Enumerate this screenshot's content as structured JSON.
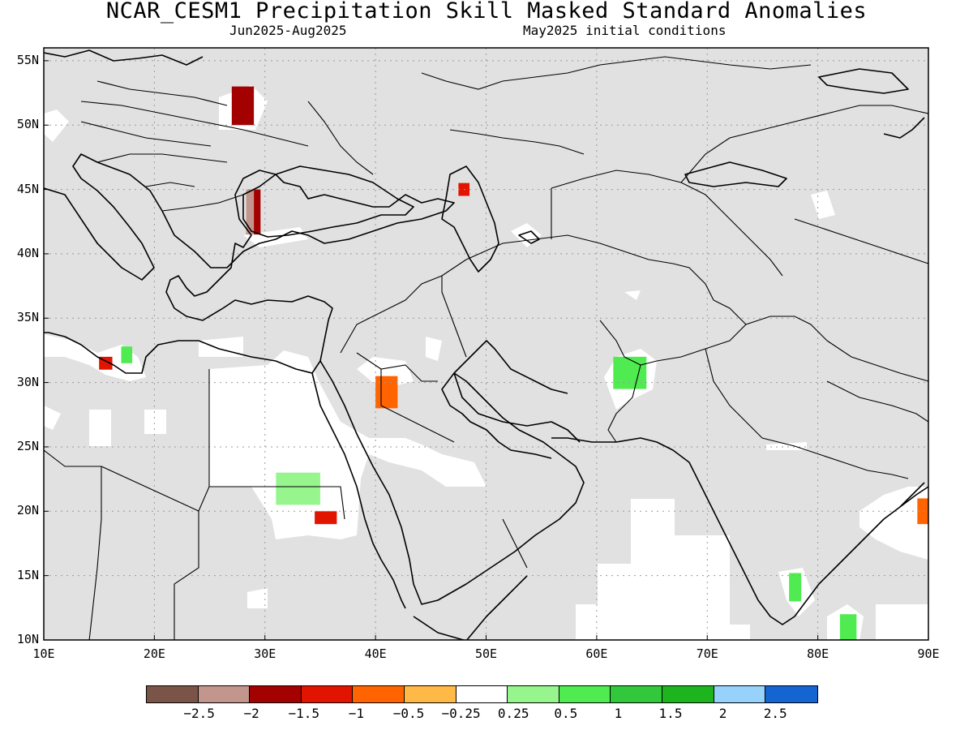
{
  "title": "NCAR_CESM1 Precipitation Skill Masked Standard Anomalies",
  "subtitle_left": "Jun2025-Aug2025",
  "subtitle_right": "May2025 initial conditions",
  "map": {
    "lon_range": [
      10,
      90
    ],
    "lat_range": [
      10,
      56
    ],
    "x_ticks": [
      "10E",
      "20E",
      "30E",
      "40E",
      "50E",
      "60E",
      "70E",
      "80E",
      "90E"
    ],
    "y_ticks": [
      "55N",
      "50N",
      "45N",
      "40N",
      "35N",
      "30N",
      "25N",
      "20N",
      "15N",
      "10N"
    ],
    "grid": "dotted",
    "background_color": "#e1e1e1",
    "unmasked_color": "#ffffff",
    "anomaly_regions": [
      {
        "name": "ukraine",
        "lon": [
          27,
          29
        ],
        "lat": [
          50,
          53
        ],
        "value": -1.5
      },
      {
        "name": "bulgaria-coast",
        "lon": [
          28.3,
          29
        ],
        "lat": [
          41.5,
          45
        ],
        "value": -2
      },
      {
        "name": "bulgaria-coast-outer",
        "lon": [
          29,
          29.6
        ],
        "lat": [
          41.5,
          45
        ],
        "value": -1.5
      },
      {
        "name": "caspian-north",
        "lon": [
          47.5,
          48.5
        ],
        "lat": [
          44.5,
          45.5
        ],
        "value": -1
      },
      {
        "name": "libya-coast",
        "lon": [
          15,
          16.2
        ],
        "lat": [
          31,
          32
        ],
        "value": -1
      },
      {
        "name": "libya-coast-east",
        "lon": [
          17,
          18
        ],
        "lat": [
          31.5,
          32.8
        ],
        "value": 1
      },
      {
        "name": "north-arabia",
        "lon": [
          40,
          42
        ],
        "lat": [
          28,
          30.5
        ],
        "value": -0.5
      },
      {
        "name": "sudan",
        "lon": [
          31,
          35
        ],
        "lat": [
          20.5,
          23
        ],
        "value": 0.5
      },
      {
        "name": "sudan-red-sea",
        "lon": [
          34.5,
          36.5
        ],
        "lat": [
          19,
          20
        ],
        "value": -1
      },
      {
        "name": "afghanistan",
        "lon": [
          61.5,
          64.5
        ],
        "lat": [
          29.5,
          32
        ],
        "value": 1
      },
      {
        "name": "india-south",
        "lon": [
          77.4,
          78.5
        ],
        "lat": [
          13,
          15.2
        ],
        "value": 1
      },
      {
        "name": "india-east",
        "lon": [
          82,
          83.5
        ],
        "lat": [
          10,
          12
        ],
        "value": 1
      },
      {
        "name": "bangladesh",
        "lon": [
          89,
          90
        ],
        "lat": [
          19,
          21
        ],
        "value": -0.5
      }
    ]
  },
  "legend": {
    "colors": [
      "#7a5446",
      "#c3968d",
      "#a30000",
      "#e11400",
      "#ff6400",
      "#ffb946",
      "#ffffff",
      "#96f58c",
      "#50eb50",
      "#32c83c",
      "#1eb41e",
      "#96d2fa",
      "#1464d2"
    ],
    "labels": [
      "-2.5",
      "-2",
      "-1.5",
      "-1",
      "-0.5",
      "-0.25",
      "0.25",
      "0.5",
      "1",
      "1.5",
      "2",
      "2.5"
    ]
  }
}
